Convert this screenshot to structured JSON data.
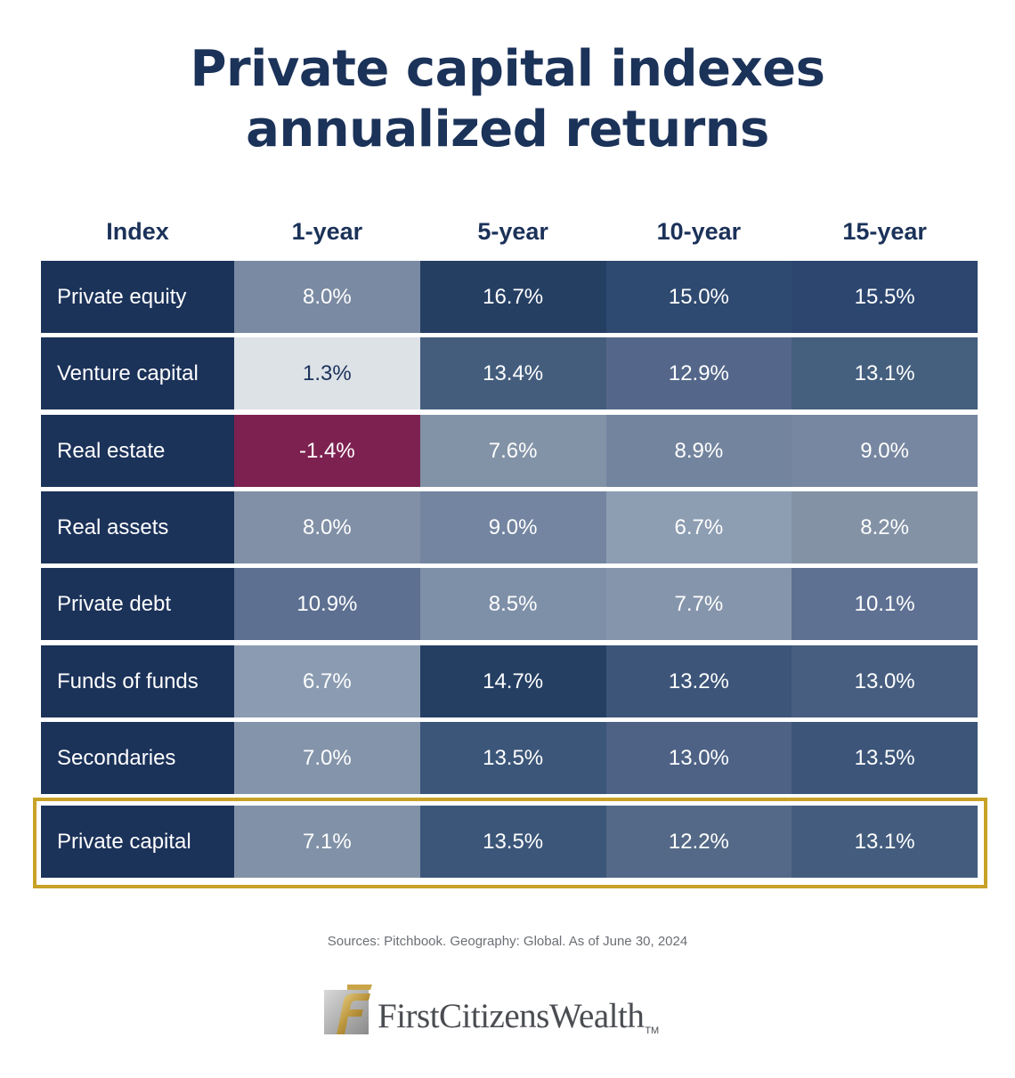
{
  "title_lines": [
    "Private capital indexes",
    "annualized returns"
  ],
  "source": "Sources: Pitchbook. Geography: Global. As of June 30, 2024",
  "logo": {
    "wordmark": "FirstCitizensWealth",
    "tm": "TM",
    "icon": "first-citizens-logo-icon"
  },
  "colors": {
    "title": "#1b3259",
    "name_cell": "#1b3259",
    "highlight_border": "#c8a227",
    "negative": "#7d2150"
  },
  "chart_data": {
    "type": "table",
    "columns": [
      "Index",
      "1-year",
      "5-year",
      "10-year",
      "15-year"
    ],
    "rows": [
      {
        "name": "Private equity",
        "values": [
          "8.0%",
          "16.7%",
          "15.0%",
          "15.5%"
        ],
        "numeric": [
          8.0,
          16.7,
          15.0,
          15.5
        ],
        "colors": [
          "#7a8aa2",
          "#253f63",
          "#2f4a70",
          "#2c4670"
        ]
      },
      {
        "name": "Venture capital",
        "values": [
          "1.3%",
          "13.4%",
          "12.9%",
          "13.1%"
        ],
        "numeric": [
          1.3,
          13.4,
          12.9,
          13.1
        ],
        "colors": [
          "#dde2e7",
          "#445d7d",
          "#54678a",
          "#455f7e"
        ]
      },
      {
        "name": "Real estate",
        "values": [
          "-1.4%",
          "7.6%",
          "8.9%",
          "9.0%"
        ],
        "numeric": [
          -1.4,
          7.6,
          8.9,
          9.0
        ],
        "colors": [
          "#7d2150",
          "#8393a7",
          "#73849e",
          "#7887a1"
        ]
      },
      {
        "name": "Real assets",
        "values": [
          "8.0%",
          "9.0%",
          "6.7%",
          "8.2%"
        ],
        "numeric": [
          8.0,
          9.0,
          6.7,
          8.2
        ],
        "colors": [
          "#8190a6",
          "#7385a0",
          "#8d9db2",
          "#8492a6"
        ]
      },
      {
        "name": "Private debt",
        "values": [
          "10.9%",
          "8.5%",
          "7.7%",
          "10.1%"
        ],
        "numeric": [
          10.9,
          8.5,
          7.7,
          10.1
        ],
        "colors": [
          "#5d7091",
          "#7e8fa8",
          "#8595ab",
          "#5f7193"
        ]
      },
      {
        "name": "Funds of funds",
        "values": [
          "6.7%",
          "14.7%",
          "13.2%",
          "13.0%"
        ],
        "numeric": [
          6.7,
          14.7,
          13.2,
          13.0
        ],
        "colors": [
          "#8b9cb2",
          "#253f63",
          "#3d5579",
          "#475e80"
        ]
      },
      {
        "name": "Secondaries",
        "values": [
          "7.0%",
          "13.5%",
          "13.0%",
          "13.5%"
        ],
        "numeric": [
          7.0,
          13.5,
          13.0,
          13.5
        ],
        "colors": [
          "#8494aa",
          "#3b5679",
          "#4d6285",
          "#3c5579"
        ]
      },
      {
        "name": "Private capital",
        "values": [
          "7.1%",
          "13.5%",
          "12.2%",
          "13.1%"
        ],
        "numeric": [
          7.1,
          13.5,
          12.2,
          13.1
        ],
        "colors": [
          "#8191a7",
          "#3b5679",
          "#546987",
          "#445d7e"
        ],
        "highlighted": true
      }
    ]
  }
}
